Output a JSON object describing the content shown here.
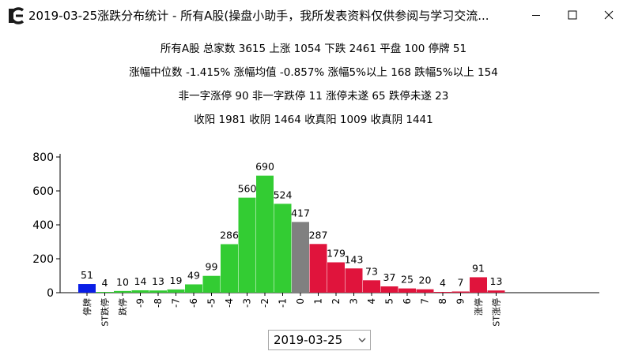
{
  "window": {
    "title": "2019-03-25涨跌分布统计 - 所有A股(操盘小助手，我所发表资料仅供参阅与学习交流...",
    "icon": "app-logo-icon"
  },
  "stats": {
    "line1": "所有A股 总家数 3615 上涨 1054 下跌 2461   平盘 100   停牌 51",
    "line2": "涨幅中位数 -1.415%   涨幅均值 -0.857%   涨幅5%以上 168   跌幅5%以上 154",
    "line3": "非一字涨停 90   非一字跌停 11   涨停未遂 65   跌停未遂 23",
    "line4": "收阳 1981   收阴 1464   收真阳 1009   收真阴 1441"
  },
  "chart_data": {
    "type": "bar",
    "categories": [
      "停牌",
      "ST跌停",
      "跌停",
      "-9",
      "-8",
      "-7",
      "-6",
      "-5",
      "-4",
      "-3",
      "-2",
      "-1",
      "0",
      "1",
      "2",
      "3",
      "4",
      "5",
      "6",
      "7",
      "8",
      "9",
      "涨停",
      "ST涨停"
    ],
    "values": [
      51,
      4,
      10,
      14,
      13,
      19,
      49,
      99,
      286,
      560,
      690,
      524,
      417,
      287,
      179,
      143,
      73,
      37,
      25,
      20,
      4,
      7,
      91,
      13
    ],
    "ylim": [
      0,
      800
    ],
    "yticks": [
      0,
      200,
      400,
      600,
      800
    ],
    "grid": false,
    "colors": {
      "suspended": "#0a1ee6",
      "down": "#33cc33",
      "flat": "#808080",
      "up": "#e0143c"
    }
  },
  "date_picker": {
    "value": "2019-03-25"
  }
}
